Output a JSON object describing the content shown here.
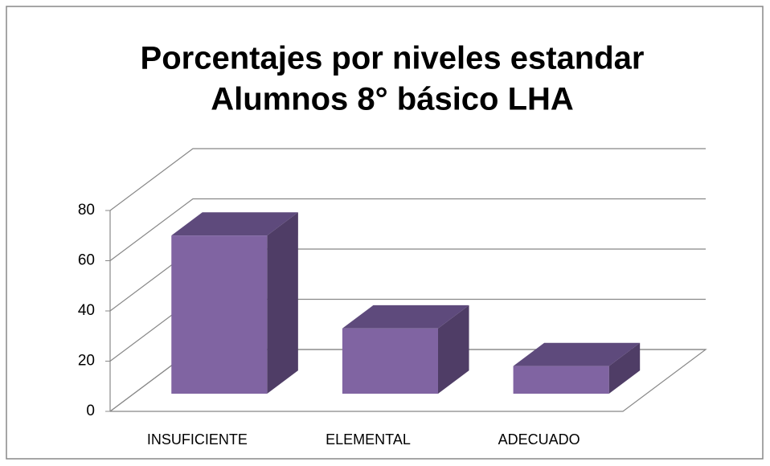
{
  "chart_data": {
    "type": "bar3d",
    "title": [
      "Porcentajes por niveles estandar",
      "Alumnos 8° básico LHA"
    ],
    "categories": [
      "INSUFICIENTE",
      "ELEMENTAL",
      "ADECUADO"
    ],
    "values": [
      63,
      26,
      11
    ],
    "color": "#8064a2",
    "ylim": [
      0,
      80
    ],
    "yticks": [
      0,
      20,
      40,
      60,
      80
    ],
    "grid": true
  }
}
